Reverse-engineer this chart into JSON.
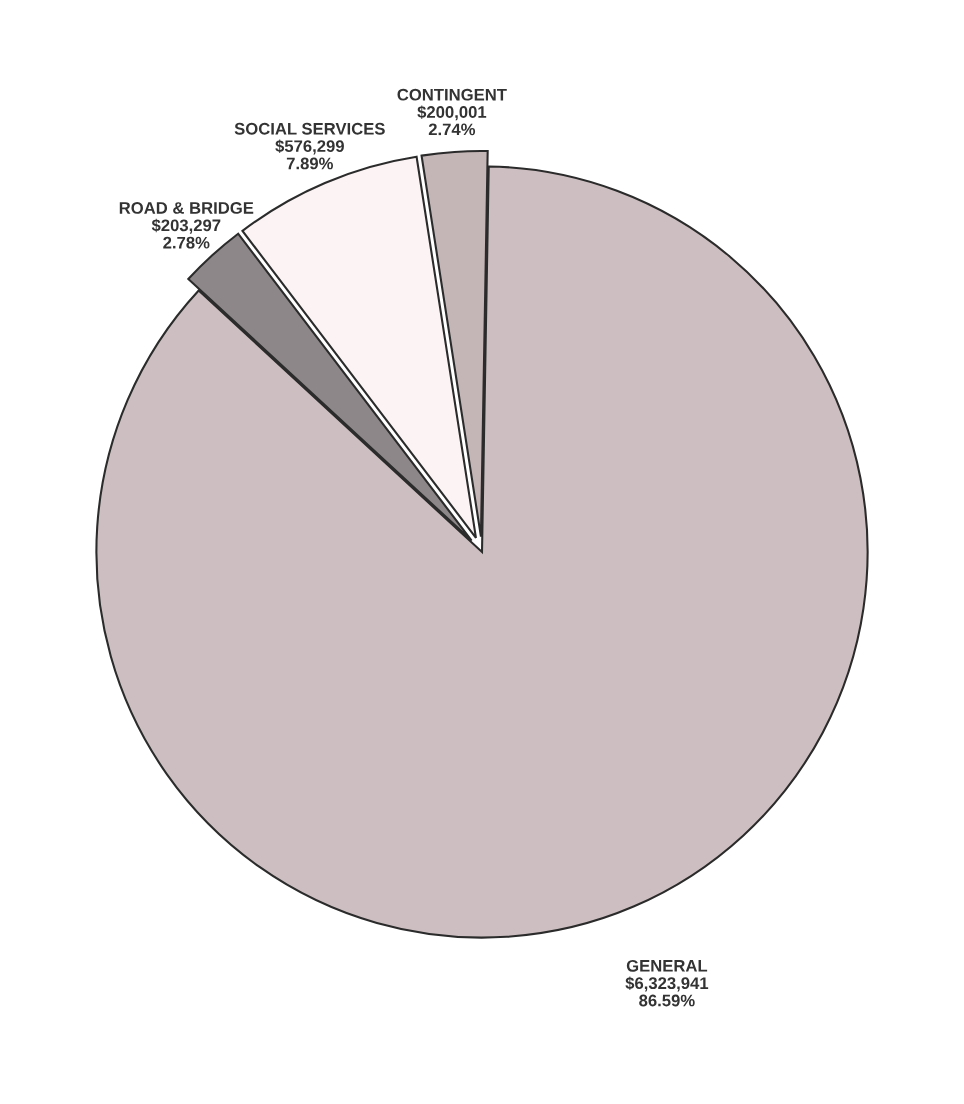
{
  "chart_data": {
    "type": "pie",
    "categories": [
      "GENERAL",
      "ROAD & BRIDGE",
      "SOCIAL SERVICES",
      "CONTINGENT"
    ],
    "values": [
      6323941,
      203297,
      576299,
      200001
    ],
    "colors": [
      "#cdbfc1",
      "#8e8789",
      "#fbf3f4",
      "#c4b5b6"
    ],
    "value_labels": [
      "$6,323,941\n86.59%",
      "$203,297\n2.78%",
      "$576,299\n7.89%",
      "$200,001\n2.74%"
    ],
    "legend": false
  }
}
